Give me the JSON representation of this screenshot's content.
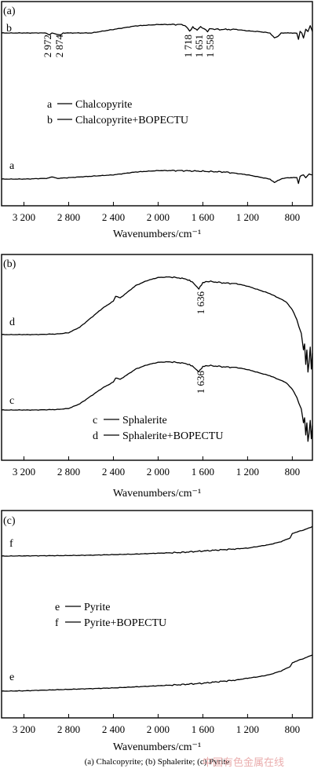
{
  "chart_data": [
    {
      "panel": "(a)",
      "type": "line",
      "xlabel": "Wavenumbers/cm⁻¹",
      "xlim": [
        3400,
        620
      ],
      "xticks": [
        3200,
        2800,
        2400,
        2000,
        1600,
        1200,
        800
      ],
      "xtick_labels": [
        "3 200",
        "2 800",
        "2 400",
        "2 000",
        "1 600",
        "1 200",
        "800"
      ],
      "series": [
        {
          "name": "b",
          "x": [
            3400,
            3200,
            3000,
            2972,
            2950,
            2874,
            2850,
            2600,
            2200,
            2000,
            1800,
            1750,
            1718,
            1690,
            1651,
            1620,
            1590,
            1558,
            1540,
            1450,
            1300,
            1200,
            1100,
            1000,
            960,
            930,
            900,
            880,
            850,
            800,
            780,
            760,
            745,
            730,
            715,
            700,
            680,
            660,
            640,
            620
          ],
          "y": [
            0.0,
            0.0,
            0.0,
            -0.03,
            0.0,
            -0.03,
            0.0,
            0.0,
            0.1,
            0.12,
            0.12,
            0.1,
            0.02,
            0.09,
            0.04,
            0.09,
            0.06,
            0.02,
            0.06,
            0.05,
            0.05,
            0.03,
            0.02,
            0.0,
            -0.07,
            -0.05,
            0.0,
            0.0,
            0.0,
            0.0,
            0.0,
            0.0,
            -0.09,
            0.02,
            0.0,
            -0.07,
            0.05,
            0.02,
            0.1,
            0.02
          ]
        },
        {
          "name": "a",
          "x": [
            3400,
            3200,
            3000,
            2950,
            2900,
            2800,
            2600,
            2400,
            2200,
            2000,
            1800,
            1600,
            1400,
            1200,
            1100,
            1000,
            960,
            930,
            900,
            850,
            800,
            760,
            745,
            730,
            700,
            680,
            650,
            620
          ],
          "y": [
            0.0,
            0.0,
            0.01,
            0.03,
            0.01,
            0.02,
            0.04,
            0.06,
            0.1,
            0.12,
            0.12,
            0.11,
            0.1,
            0.06,
            0.03,
            0.0,
            -0.05,
            -0.02,
            0.0,
            0.02,
            0.02,
            0.02,
            -0.06,
            0.04,
            0.06,
            0.02,
            0.07,
            0.06
          ]
        }
      ],
      "annotations": [
        "2 972",
        "2 874",
        "1 718",
        "1 651",
        "1 558"
      ],
      "legend": [
        {
          "key": "a",
          "label": "Chalcopyrite"
        },
        {
          "key": "b",
          "label": "Chalcopyrite+BOPECTU"
        }
      ]
    },
    {
      "panel": "(b)",
      "type": "line",
      "xlabel": "Wavenumbers/cm⁻¹",
      "xlim": [
        3400,
        620
      ],
      "xticks": [
        3200,
        2800,
        2400,
        2000,
        1600,
        1200,
        800
      ],
      "xtick_labels": [
        "3 200",
        "2 800",
        "2 400",
        "2 000",
        "1 600",
        "1 200",
        "800"
      ],
      "series": [
        {
          "name": "d",
          "x": [
            3400,
            3100,
            2900,
            2800,
            2700,
            2600,
            2500,
            2400,
            2380,
            2340,
            2200,
            2100,
            2000,
            1900,
            1800,
            1720,
            1680,
            1636,
            1600,
            1560,
            1500,
            1400,
            1300,
            1200,
            1100,
            1000,
            900,
            850,
            800,
            760,
            740,
            720,
            700,
            690,
            680,
            670,
            660,
            650,
            640,
            630,
            620
          ],
          "y": [
            0.0,
            0.0,
            0.01,
            0.03,
            0.12,
            0.27,
            0.42,
            0.54,
            0.62,
            0.59,
            0.79,
            0.87,
            0.92,
            0.93,
            0.91,
            0.88,
            0.82,
            0.74,
            0.83,
            0.86,
            0.85,
            0.83,
            0.82,
            0.78,
            0.72,
            0.66,
            0.57,
            0.52,
            0.4,
            0.24,
            0.12,
            0.02,
            -0.25,
            -0.15,
            -0.48,
            -0.25,
            -0.6,
            -0.45,
            -0.2,
            -0.55,
            -0.3
          ]
        },
        {
          "name": "c",
          "x": [
            3400,
            3100,
            2900,
            2800,
            2700,
            2600,
            2500,
            2400,
            2380,
            2340,
            2200,
            2100,
            2000,
            1900,
            1800,
            1720,
            1680,
            1636,
            1600,
            1560,
            1500,
            1400,
            1300,
            1200,
            1100,
            1000,
            900,
            850,
            800,
            760,
            740,
            720,
            700,
            690,
            680,
            670,
            660,
            650,
            640,
            630,
            620
          ],
          "y": [
            0.0,
            0.0,
            0.01,
            0.03,
            0.12,
            0.27,
            0.42,
            0.54,
            0.62,
            0.59,
            0.79,
            0.87,
            0.92,
            0.93,
            0.91,
            0.88,
            0.82,
            0.74,
            0.83,
            0.86,
            0.85,
            0.83,
            0.82,
            0.78,
            0.72,
            0.66,
            0.57,
            0.52,
            0.4,
            0.24,
            0.12,
            0.02,
            -0.25,
            -0.15,
            -0.48,
            -0.25,
            -0.6,
            -0.45,
            -0.2,
            -0.55,
            -0.3
          ]
        }
      ],
      "annotations": [
        "1 636",
        "1 636"
      ],
      "legend": [
        {
          "key": "c",
          "label": "Sphalerite"
        },
        {
          "key": "d",
          "label": "Sphalerite+BOPECTU"
        }
      ]
    },
    {
      "panel": "(c)",
      "type": "line",
      "xlabel": "Wavenumbers/cm⁻¹",
      "xlim": [
        3400,
        620
      ],
      "xticks": [
        3200,
        2800,
        2400,
        2000,
        1600,
        1200,
        800
      ],
      "xtick_labels": [
        "3 200",
        "2 800",
        "2 400",
        "2 000",
        "1 600",
        "1 200",
        "800"
      ],
      "series": [
        {
          "name": "f",
          "x": [
            3400,
            3200,
            3000,
            2800,
            2600,
            2400,
            2200,
            2000,
            1800,
            1700,
            1600,
            1500,
            1400,
            1300,
            1200,
            1100,
            1000,
            900,
            860,
            820,
            800,
            760,
            700,
            640,
            620
          ],
          "y": [
            0.0,
            0.005,
            0.01,
            0.015,
            0.025,
            0.04,
            0.055,
            0.08,
            0.1,
            0.12,
            0.14,
            0.16,
            0.18,
            0.2,
            0.22,
            0.27,
            0.32,
            0.4,
            0.45,
            0.5,
            0.62,
            0.67,
            0.72,
            0.79,
            0.82
          ]
        },
        {
          "name": "e",
          "x": [
            3400,
            3200,
            3000,
            2800,
            2600,
            2400,
            2200,
            2000,
            1800,
            1700,
            1600,
            1500,
            1400,
            1300,
            1200,
            1100,
            1000,
            900,
            860,
            820,
            800,
            760,
            700,
            640,
            620
          ],
          "y": [
            0.0,
            0.01,
            0.03,
            0.05,
            0.07,
            0.09,
            0.12,
            0.15,
            0.18,
            0.2,
            0.22,
            0.25,
            0.28,
            0.31,
            0.36,
            0.4,
            0.46,
            0.56,
            0.62,
            0.68,
            0.78,
            0.84,
            0.9,
            0.98,
            1.0
          ]
        }
      ],
      "annotations": [],
      "legend": [
        {
          "key": "e",
          "label": "Pyrite"
        },
        {
          "key": "f",
          "label": "Pyrite+BOPECTU"
        }
      ]
    }
  ],
  "caption": "(a)  Chalcopyrite;  (b)  Sphalerite;  (c)  Pyrite",
  "watermark": "中国有色金属在线"
}
